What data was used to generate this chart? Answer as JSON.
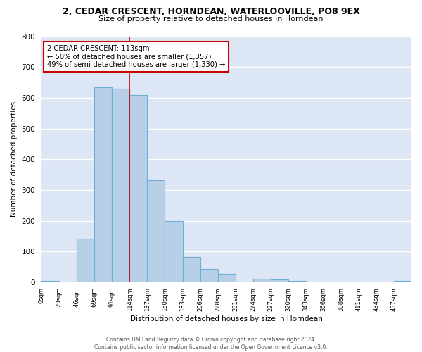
{
  "title": "2, CEDAR CRESCENT, HORNDEAN, WATERLOOVILLE, PO8 9EX",
  "subtitle": "Size of property relative to detached houses in Horndean",
  "xlabel": "Distribution of detached houses by size in Horndean",
  "ylabel": "Number of detached properties",
  "bin_labels": [
    "0sqm",
    "23sqm",
    "46sqm",
    "69sqm",
    "91sqm",
    "114sqm",
    "137sqm",
    "160sqm",
    "183sqm",
    "206sqm",
    "228sqm",
    "251sqm",
    "274sqm",
    "297sqm",
    "320sqm",
    "343sqm",
    "366sqm",
    "388sqm",
    "411sqm",
    "434sqm",
    "457sqm"
  ],
  "bar_heights": [
    5,
    0,
    142,
    635,
    630,
    610,
    333,
    200,
    82,
    44,
    27,
    0,
    11,
    10,
    5,
    0,
    0,
    0,
    0,
    0,
    5
  ],
  "bar_color": "#b8cfe8",
  "bar_edge_color": "#6baed6",
  "marker_label": "2 CEDAR CRESCENT: 113sqm",
  "annotation_line1": "← 50% of detached houses are smaller (1,357)",
  "annotation_line2": "49% of semi-detached houses are larger (1,330) →",
  "annotation_box_color": "#ffffff",
  "annotation_border_color": "#cc0000",
  "vline_color": "#cc0000",
  "vline_x_index": 4,
  "ylim": [
    0,
    800
  ],
  "yticks": [
    0,
    100,
    200,
    300,
    400,
    500,
    600,
    700,
    800
  ],
  "plot_background": "#dce6f5",
  "footer_line1": "Contains HM Land Registry data © Crown copyright and database right 2024.",
  "footer_line2": "Contains public sector information licensed under the Open Government Licence v3.0."
}
